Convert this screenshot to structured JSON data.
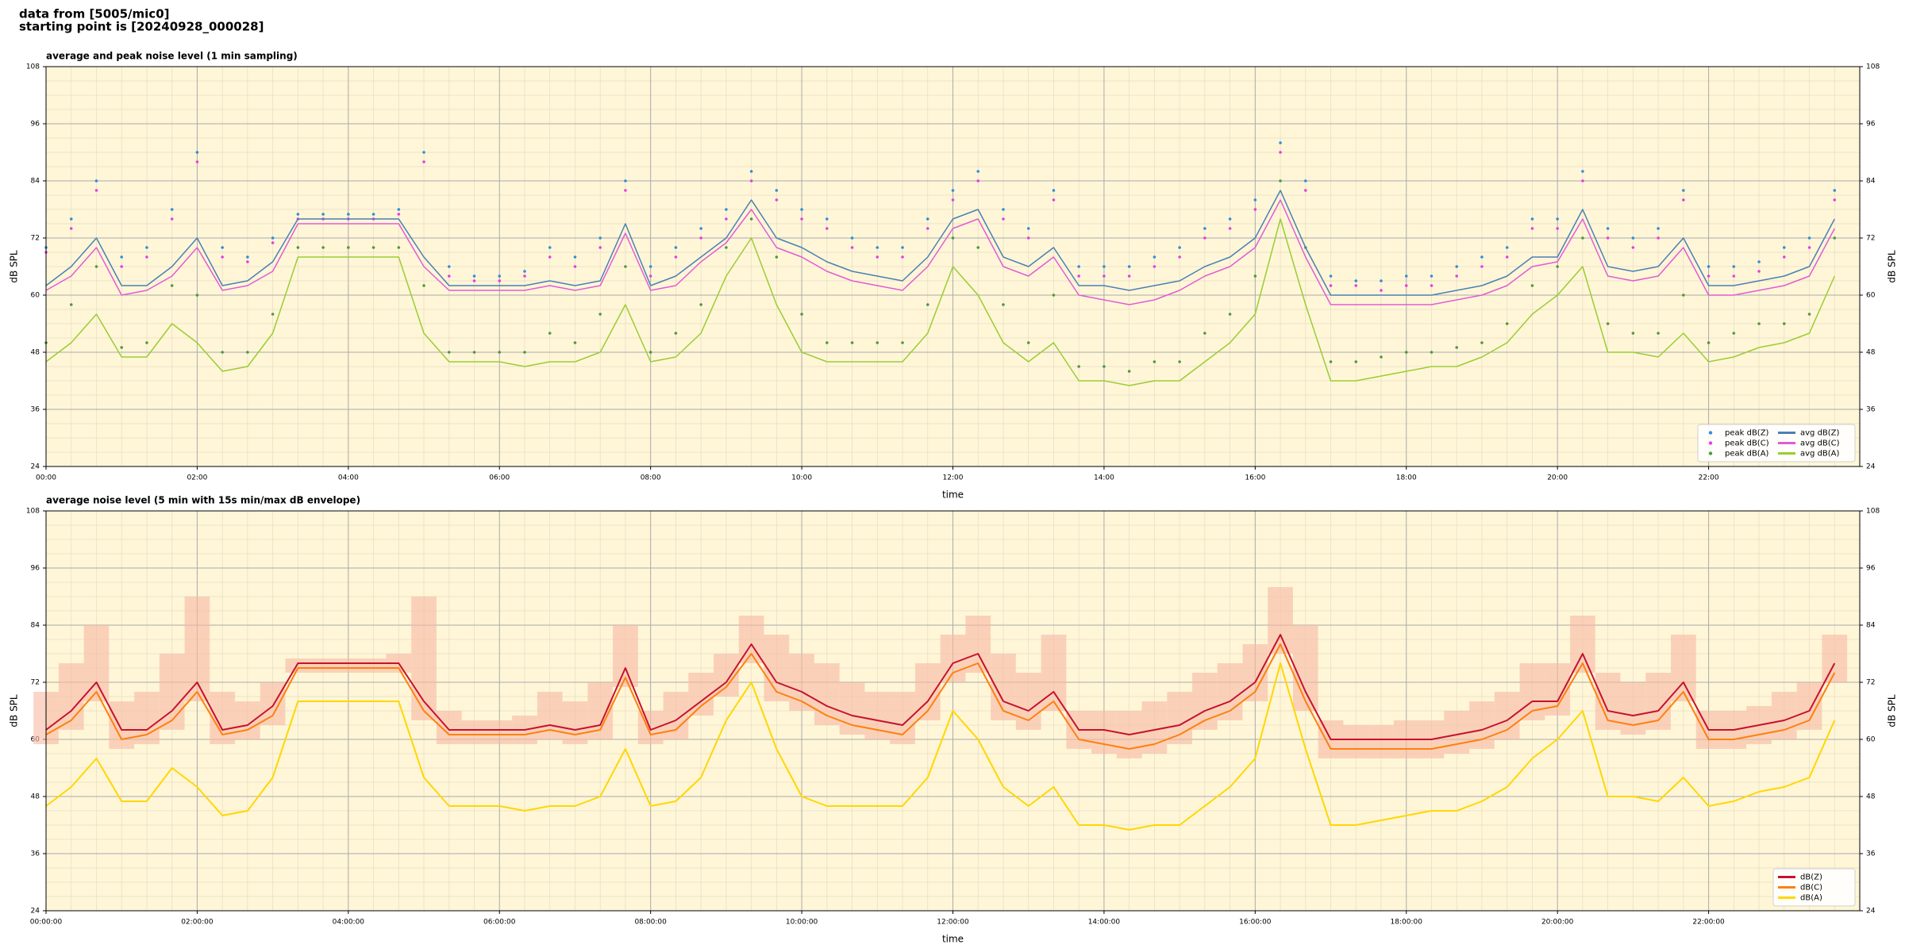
{
  "header": {
    "line1": "data from [5005/mic0]",
    "line2": "starting point is [20240928_000028]"
  },
  "chart_data": [
    {
      "type": "line",
      "title": "average and peak noise level (1 min sampling)",
      "xlabel": "time",
      "ylabel": "dB SPL",
      "x": [
        0,
        20,
        40,
        60,
        80,
        100,
        120,
        140,
        160,
        180,
        200,
        220,
        240,
        260,
        280,
        300,
        320,
        340,
        360,
        380,
        400,
        420,
        440,
        460,
        480,
        500,
        520,
        540,
        560,
        580,
        600,
        620,
        640,
        660,
        680,
        700,
        720,
        740,
        760,
        780,
        800,
        820,
        840,
        860,
        880,
        900,
        920,
        940,
        960,
        980,
        1000,
        1020,
        1040,
        1060,
        1080,
        1100,
        1120,
        1140,
        1160,
        1180,
        1200,
        1220,
        1240,
        1260,
        1280,
        1300,
        1320,
        1340,
        1360,
        1380,
        1400,
        1420
      ],
      "xlim": [
        0,
        1440
      ],
      "xticks": [
        {
          "value": 0,
          "label": "00:00"
        },
        {
          "value": 120,
          "label": "02:00"
        },
        {
          "value": 240,
          "label": "04:00"
        },
        {
          "value": 360,
          "label": "06:00"
        },
        {
          "value": 480,
          "label": "08:00"
        },
        {
          "value": 600,
          "label": "10:00"
        },
        {
          "value": 720,
          "label": "12:00"
        },
        {
          "value": 840,
          "label": "14:00"
        },
        {
          "value": 960,
          "label": "16:00"
        },
        {
          "value": 1080,
          "label": "18:00"
        },
        {
          "value": 1200,
          "label": "20:00"
        },
        {
          "value": 1320,
          "label": "22:00"
        }
      ],
      "ylim": [
        24,
        108
      ],
      "yticks": [
        24,
        36,
        48,
        60,
        72,
        84,
        96,
        108
      ],
      "grid": true,
      "right_axis": true,
      "legend": "lower right",
      "legend_columns": 2,
      "series": [
        {
          "name": "peak dB(Z)",
          "type": "scatter",
          "color": "#2f8fd8",
          "values": [
            70,
            76,
            84,
            68,
            70,
            78,
            90,
            70,
            68,
            72,
            77,
            77,
            77,
            77,
            78,
            90,
            66,
            64,
            64,
            65,
            70,
            68,
            72,
            84,
            66,
            70,
            74,
            78,
            86,
            82,
            78,
            76,
            72,
            70,
            70,
            76,
            82,
            86,
            78,
            74,
            82,
            66,
            66,
            66,
            68,
            70,
            74,
            76,
            80,
            92,
            84,
            64,
            63,
            63,
            64,
            64,
            66,
            68,
            70,
            76,
            76,
            86,
            74,
            72,
            74,
            82,
            66,
            66,
            67,
            70,
            72,
            82
          ]
        },
        {
          "name": "peak dB(C)",
          "type": "scatter",
          "color": "#e83ee0",
          "values": [
            69,
            74,
            82,
            66,
            68,
            76,
            88,
            68,
            67,
            71,
            76,
            76,
            76,
            76,
            77,
            88,
            64,
            63,
            63,
            64,
            68,
            66,
            70,
            82,
            64,
            68,
            72,
            76,
            84,
            80,
            76,
            74,
            70,
            68,
            68,
            74,
            80,
            84,
            76,
            72,
            80,
            64,
            64,
            64,
            66,
            68,
            72,
            74,
            78,
            90,
            82,
            62,
            62,
            61,
            62,
            62,
            64,
            66,
            68,
            74,
            74,
            84,
            72,
            70,
            72,
            80,
            64,
            64,
            65,
            68,
            70,
            80
          ]
        },
        {
          "name": "peak dB(A)",
          "type": "scatter",
          "color": "#4f9a3c",
          "values": [
            50,
            58,
            66,
            49,
            50,
            62,
            60,
            48,
            48,
            56,
            70,
            70,
            70,
            70,
            70,
            62,
            48,
            48,
            48,
            48,
            52,
            50,
            56,
            66,
            48,
            52,
            58,
            70,
            76,
            68,
            56,
            50,
            50,
            50,
            50,
            58,
            72,
            70,
            58,
            50,
            60,
            45,
            45,
            44,
            46,
            46,
            52,
            56,
            64,
            84,
            70,
            46,
            46,
            47,
            48,
            48,
            49,
            50,
            54,
            62,
            66,
            72,
            54,
            52,
            52,
            60,
            50,
            52,
            54,
            54,
            56,
            72
          ]
        },
        {
          "name": "avg dB(Z)",
          "type": "line",
          "color": "#4a80b4",
          "values": [
            62,
            66,
            72,
            62,
            62,
            66,
            72,
            62,
            63,
            67,
            76,
            76,
            76,
            76,
            76,
            68,
            62,
            62,
            62,
            62,
            63,
            62,
            63,
            75,
            62,
            64,
            68,
            72,
            80,
            72,
            70,
            67,
            65,
            64,
            63,
            68,
            76,
            78,
            68,
            66,
            70,
            62,
            62,
            61,
            62,
            63,
            66,
            68,
            72,
            82,
            70,
            60,
            60,
            60,
            60,
            60,
            61,
            62,
            64,
            68,
            68,
            78,
            66,
            65,
            66,
            72,
            62,
            62,
            63,
            64,
            66,
            76
          ]
        },
        {
          "name": "avg dB(C)",
          "type": "line",
          "color": "#e25bd4",
          "values": [
            61,
            64,
            70,
            60,
            61,
            64,
            70,
            61,
            62,
            65,
            75,
            75,
            75,
            75,
            75,
            66,
            61,
            61,
            61,
            61,
            62,
            61,
            62,
            73,
            61,
            62,
            67,
            71,
            78,
            70,
            68,
            65,
            63,
            62,
            61,
            66,
            74,
            76,
            66,
            64,
            68,
            60,
            59,
            58,
            59,
            61,
            64,
            66,
            70,
            80,
            68,
            58,
            58,
            58,
            58,
            58,
            59,
            60,
            62,
            66,
            67,
            76,
            64,
            63,
            64,
            70,
            60,
            60,
            61,
            62,
            64,
            74
          ]
        },
        {
          "name": "avg dB(A)",
          "type": "line",
          "color": "#9acd32",
          "values": [
            46,
            50,
            56,
            47,
            47,
            54,
            50,
            44,
            45,
            52,
            68,
            68,
            68,
            68,
            68,
            52,
            46,
            46,
            46,
            45,
            46,
            46,
            48,
            58,
            46,
            47,
            52,
            64,
            72,
            58,
            48,
            46,
            46,
            46,
            46,
            52,
            66,
            60,
            50,
            46,
            50,
            42,
            42,
            41,
            42,
            42,
            46,
            50,
            56,
            76,
            58,
            42,
            42,
            43,
            44,
            45,
            45,
            47,
            50,
            56,
            60,
            66,
            48,
            48,
            47,
            52,
            46,
            47,
            49,
            50,
            52,
            64
          ]
        }
      ]
    },
    {
      "type": "line",
      "title": "average noise level (5 min with 15s min/max dB envelope)",
      "xlabel": "time",
      "ylabel": "dB SPL",
      "x": [
        0,
        20,
        40,
        60,
        80,
        100,
        120,
        140,
        160,
        180,
        200,
        220,
        240,
        260,
        280,
        300,
        320,
        340,
        360,
        380,
        400,
        420,
        440,
        460,
        480,
        500,
        520,
        540,
        560,
        580,
        600,
        620,
        640,
        660,
        680,
        700,
        720,
        740,
        760,
        780,
        800,
        820,
        840,
        860,
        880,
        900,
        920,
        940,
        960,
        980,
        1000,
        1020,
        1040,
        1060,
        1080,
        1100,
        1120,
        1140,
        1160,
        1180,
        1200,
        1220,
        1240,
        1260,
        1280,
        1300,
        1320,
        1340,
        1360,
        1380,
        1400,
        1420
      ],
      "xlim": [
        0,
        1440
      ],
      "xticks": [
        {
          "value": 0,
          "label": "00:00:00"
        },
        {
          "value": 120,
          "label": "02:00:00"
        },
        {
          "value": 240,
          "label": "04:00:00"
        },
        {
          "value": 360,
          "label": "06:00:00"
        },
        {
          "value": 480,
          "label": "08:00:00"
        },
        {
          "value": 600,
          "label": "10:00:00"
        },
        {
          "value": 720,
          "label": "12:00:00"
        },
        {
          "value": 840,
          "label": "14:00:00"
        },
        {
          "value": 960,
          "label": "16:00:00"
        },
        {
          "value": 1080,
          "label": "18:00:00"
        },
        {
          "value": 1200,
          "label": "20:00:00"
        },
        {
          "value": 1320,
          "label": "22:00:00"
        }
      ],
      "ylim": [
        24,
        108
      ],
      "yticks": [
        24,
        36,
        48,
        60,
        72,
        84,
        96,
        108
      ],
      "grid": true,
      "right_axis": true,
      "legend": "lower right",
      "legend_columns": 1,
      "envelope": {
        "color": "#f6b9a4",
        "max": [
          70,
          76,
          84,
          68,
          70,
          78,
          90,
          70,
          68,
          72,
          77,
          77,
          77,
          77,
          78,
          90,
          66,
          64,
          64,
          65,
          70,
          68,
          72,
          84,
          66,
          70,
          74,
          78,
          86,
          82,
          78,
          76,
          72,
          70,
          70,
          76,
          82,
          86,
          78,
          74,
          82,
          66,
          66,
          66,
          68,
          70,
          74,
          76,
          80,
          92,
          84,
          64,
          63,
          63,
          64,
          64,
          66,
          68,
          70,
          76,
          76,
          86,
          74,
          72,
          74,
          82,
          66,
          66,
          67,
          70,
          72,
          82
        ],
        "min": [
          59,
          62,
          68,
          58,
          59,
          62,
          68,
          59,
          60,
          63,
          74,
          74,
          74,
          74,
          74,
          64,
          59,
          59,
          59,
          59,
          60,
          59,
          60,
          71,
          59,
          60,
          65,
          69,
          76,
          68,
          66,
          63,
          61,
          60,
          59,
          64,
          72,
          74,
          64,
          62,
          66,
          58,
          57,
          56,
          57,
          59,
          62,
          64,
          68,
          78,
          66,
          56,
          56,
          56,
          56,
          56,
          57,
          58,
          60,
          64,
          65,
          74,
          62,
          61,
          62,
          68,
          58,
          58,
          59,
          60,
          62,
          72
        ]
      },
      "series": [
        {
          "name": "dB(Z)",
          "type": "line",
          "color": "#c8102e",
          "values": [
            62,
            66,
            72,
            62,
            62,
            66,
            72,
            62,
            63,
            67,
            76,
            76,
            76,
            76,
            76,
            68,
            62,
            62,
            62,
            62,
            63,
            62,
            63,
            75,
            62,
            64,
            68,
            72,
            80,
            72,
            70,
            67,
            65,
            64,
            63,
            68,
            76,
            78,
            68,
            66,
            70,
            62,
            62,
            61,
            62,
            63,
            66,
            68,
            72,
            82,
            70,
            60,
            60,
            60,
            60,
            60,
            61,
            62,
            64,
            68,
            68,
            78,
            66,
            65,
            66,
            72,
            62,
            62,
            63,
            64,
            66,
            76
          ]
        },
        {
          "name": "dB(C)",
          "type": "line",
          "color": "#ff7f0e",
          "values": [
            61,
            64,
            70,
            60,
            61,
            64,
            70,
            61,
            62,
            65,
            75,
            75,
            75,
            75,
            75,
            66,
            61,
            61,
            61,
            61,
            62,
            61,
            62,
            73,
            61,
            62,
            67,
            71,
            78,
            70,
            68,
            65,
            63,
            62,
            61,
            66,
            74,
            76,
            66,
            64,
            68,
            60,
            59,
            58,
            59,
            61,
            64,
            66,
            70,
            80,
            68,
            58,
            58,
            58,
            58,
            58,
            59,
            60,
            62,
            66,
            67,
            76,
            64,
            63,
            64,
            70,
            60,
            60,
            61,
            62,
            64,
            74
          ]
        },
        {
          "name": "dB(A)",
          "type": "line",
          "color": "#ffd700",
          "values": [
            46,
            50,
            56,
            47,
            47,
            54,
            50,
            44,
            45,
            52,
            68,
            68,
            68,
            68,
            68,
            52,
            46,
            46,
            46,
            45,
            46,
            46,
            48,
            58,
            46,
            47,
            52,
            64,
            72,
            58,
            48,
            46,
            46,
            46,
            46,
            52,
            66,
            60,
            50,
            46,
            50,
            42,
            42,
            41,
            42,
            42,
            46,
            50,
            56,
            76,
            58,
            42,
            42,
            43,
            44,
            45,
            45,
            47,
            50,
            56,
            60,
            66,
            48,
            48,
            47,
            52,
            46,
            47,
            49,
            50,
            52,
            64
          ]
        }
      ]
    }
  ]
}
